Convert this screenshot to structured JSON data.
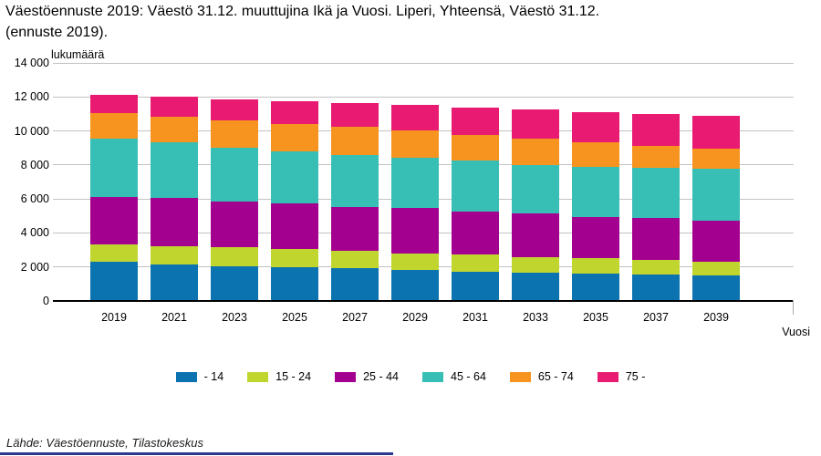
{
  "header": {
    "title_line1": "Väestöennuste 2019: Väestö 31.12. muuttujina Ikä ja Vuosi. Liperi, Yhteensä, Väestö 31.12.",
    "title_line2": "(ennuste 2019)."
  },
  "footer": {
    "source": "Lähde: Väestöennuste, Tilastokeskus"
  },
  "chart_data": {
    "type": "bar",
    "stacked": true,
    "title": "Väestöennuste 2019: Väestö 31.12. muuttujina Ikä ja Vuosi. Liperi, Yhteensä, Väestö 31.12. (ennuste 2019).",
    "xlabel": "Vuosi",
    "ylabel": "lukumäärä",
    "ylim": [
      0,
      14000
    ],
    "grid": true,
    "legend_position": "bottom",
    "categories": [
      "2019",
      "2021",
      "2023",
      "2025",
      "2027",
      "2029",
      "2031",
      "2033",
      "2035",
      "2037",
      "2039"
    ],
    "yticks": [
      {
        "value": 0,
        "label": "0"
      },
      {
        "value": 2000,
        "label": "2 000"
      },
      {
        "value": 4000,
        "label": "4 000"
      },
      {
        "value": 6000,
        "label": "6 000"
      },
      {
        "value": 8000,
        "label": "8 000"
      },
      {
        "value": 10000,
        "label": "10 000"
      },
      {
        "value": 12000,
        "label": "12 000"
      },
      {
        "value": 14000,
        "label": "14 000"
      }
    ],
    "series": [
      {
        "name": "- 14",
        "color": "#0b73b0",
        "values": [
          2290,
          2150,
          2060,
          1970,
          1920,
          1825,
          1735,
          1665,
          1610,
          1560,
          1490
        ]
      },
      {
        "name": "15 - 24",
        "color": "#c0d62f",
        "values": [
          1060,
          1075,
          1110,
          1110,
          1040,
          985,
          990,
          930,
          900,
          860,
          805
        ]
      },
      {
        "name": "25 - 44",
        "color": "#a40090",
        "values": [
          2740,
          2810,
          2690,
          2655,
          2540,
          2655,
          2505,
          2545,
          2450,
          2455,
          2450
        ]
      },
      {
        "name": "45 - 64",
        "color": "#38bfb5",
        "values": [
          3460,
          3280,
          3130,
          3040,
          3100,
          2955,
          3010,
          2865,
          2925,
          2955,
          3010
        ]
      },
      {
        "name": "65 - 74",
        "color": "#f79420",
        "values": [
          1510,
          1525,
          1615,
          1650,
          1650,
          1610,
          1525,
          1545,
          1430,
          1270,
          1205
        ]
      },
      {
        "name": "75 -",
        "color": "#e81a71",
        "values": [
          1070,
          1200,
          1270,
          1345,
          1395,
          1485,
          1615,
          1735,
          1795,
          1880,
          1920
        ]
      }
    ],
    "totals": [
      12130,
      12040,
      11875,
      11770,
      11645,
      11515,
      11380,
      11285,
      11110,
      10980,
      10880
    ]
  }
}
